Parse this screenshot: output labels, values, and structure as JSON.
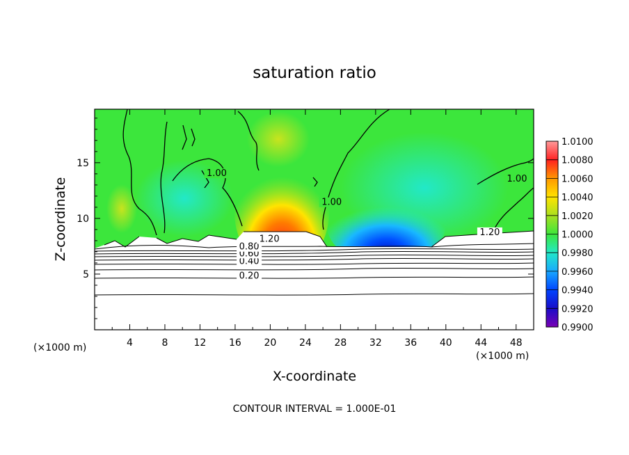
{
  "chart_data": {
    "type": "heatmap",
    "title": "saturation ratio",
    "xlabel": "X-coordinate",
    "ylabel": "Z-coordinate",
    "x_unit_note": "(×1000 m)",
    "y_unit_note": "(×1000 m)",
    "xlim": [
      0,
      50
    ],
    "ylim": [
      0,
      19.8
    ],
    "x_ticks": [
      4,
      8,
      12,
      16,
      20,
      24,
      28,
      32,
      36,
      40,
      44,
      48
    ],
    "y_ticks": [
      5,
      10,
      15
    ],
    "colorbar": {
      "labels": [
        "0.9900",
        "0.9920",
        "0.9940",
        "0.9960",
        "0.9980",
        "1.0000",
        "1.0020",
        "1.0040",
        "1.0060",
        "1.0080",
        "1.0100"
      ],
      "colors": [
        "#7a00b4",
        "#1a0cc8",
        "#0044ff",
        "#19a8ff",
        "#22e8c8",
        "#3ce63c",
        "#a8e020",
        "#ffe400",
        "#ff9800",
        "#ff2020",
        "#ff9a9a"
      ],
      "range": [
        0.99,
        1.01
      ]
    },
    "contour_levels_lower": [
      0.2,
      0.4,
      0.6,
      0.8
    ],
    "contour_labels": [
      {
        "text": "0.20",
        "x": 17.6,
        "z": 4.6
      },
      {
        "text": "0.40",
        "x": 17.6,
        "z": 5.9
      },
      {
        "text": "0.60",
        "x": 17.6,
        "z": 6.6
      },
      {
        "text": "0.80",
        "x": 17.6,
        "z": 7.2
      },
      {
        "text": "1.20",
        "x": 19.9,
        "z": 7.9
      },
      {
        "text": "1.00",
        "x": 13.9,
        "z": 13.8
      },
      {
        "text": "1.00",
        "x": 27.0,
        "z": 11.2
      },
      {
        "text": "1.00",
        "x": 48.1,
        "z": 13.3
      },
      {
        "text": "1.20",
        "x": 45.0,
        "z": 8.5
      }
    ],
    "contour_interval": 0.1,
    "footer": "CONTOUR INTERVAL = 1.000E-01"
  }
}
